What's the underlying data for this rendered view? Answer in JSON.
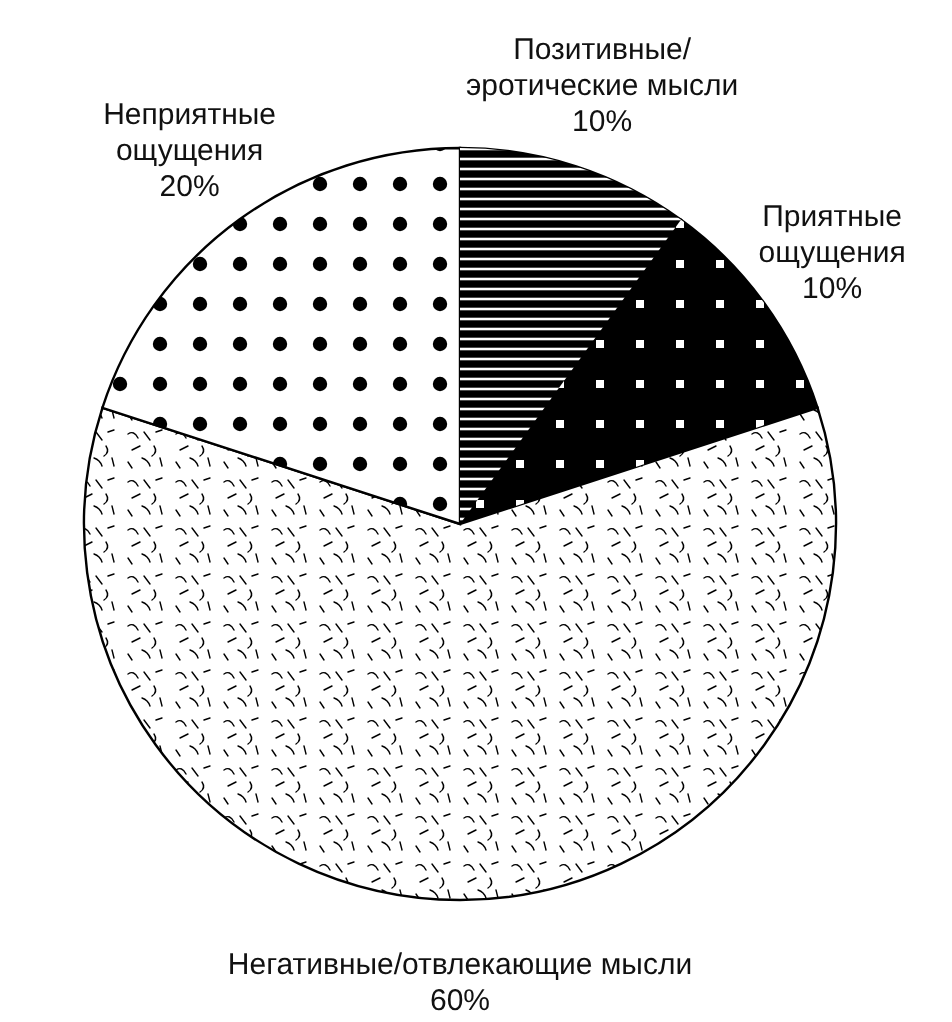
{
  "chart_data": {
    "type": "pie",
    "categories": [
      "Позитивные/\nэротические мысли",
      "Приятные\nощущения",
      "Негативные/отвлекающие мысли",
      "Неприятные\nощущения"
    ],
    "values": [
      10,
      10,
      60,
      20
    ],
    "value_labels": [
      "10%",
      "10%",
      "60%",
      "20%"
    ],
    "colors": [
      "#000000",
      "#000000",
      "#ffffff",
      "#ffffff"
    ]
  }
}
